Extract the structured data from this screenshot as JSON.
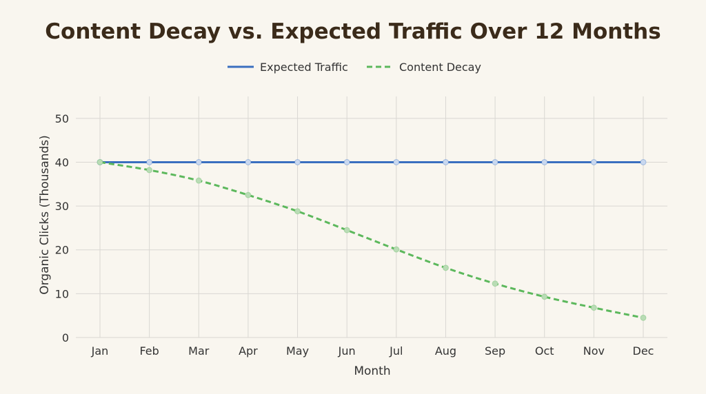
{
  "chart_data": {
    "type": "line",
    "title": "Content Decay vs. Expected Traffic Over 12 Months",
    "xlabel": "Month",
    "ylabel": "Organic Clicks (Thousands)",
    "categories": [
      "Jan",
      "Feb",
      "Mar",
      "Apr",
      "May",
      "Jun",
      "Jul",
      "Aug",
      "Sep",
      "Oct",
      "Nov",
      "Dec"
    ],
    "ylim": [
      0,
      55
    ],
    "yticks": [
      0,
      10,
      20,
      30,
      40,
      50
    ],
    "grid": true,
    "legend_position": "top-center",
    "series": [
      {
        "name": "Expected Traffic",
        "style": "solid",
        "color": "#3a6fbf",
        "values": [
          40,
          40,
          40,
          40,
          40,
          40,
          40,
          40,
          40,
          40,
          40,
          40
        ]
      },
      {
        "name": "Content Decay",
        "style": "dashed",
        "color": "#5cb85c",
        "values": [
          40,
          38.2,
          35.8,
          32.5,
          28.8,
          24.5,
          20.1,
          15.9,
          12.3,
          9.3,
          6.8,
          4.5
        ]
      }
    ]
  }
}
